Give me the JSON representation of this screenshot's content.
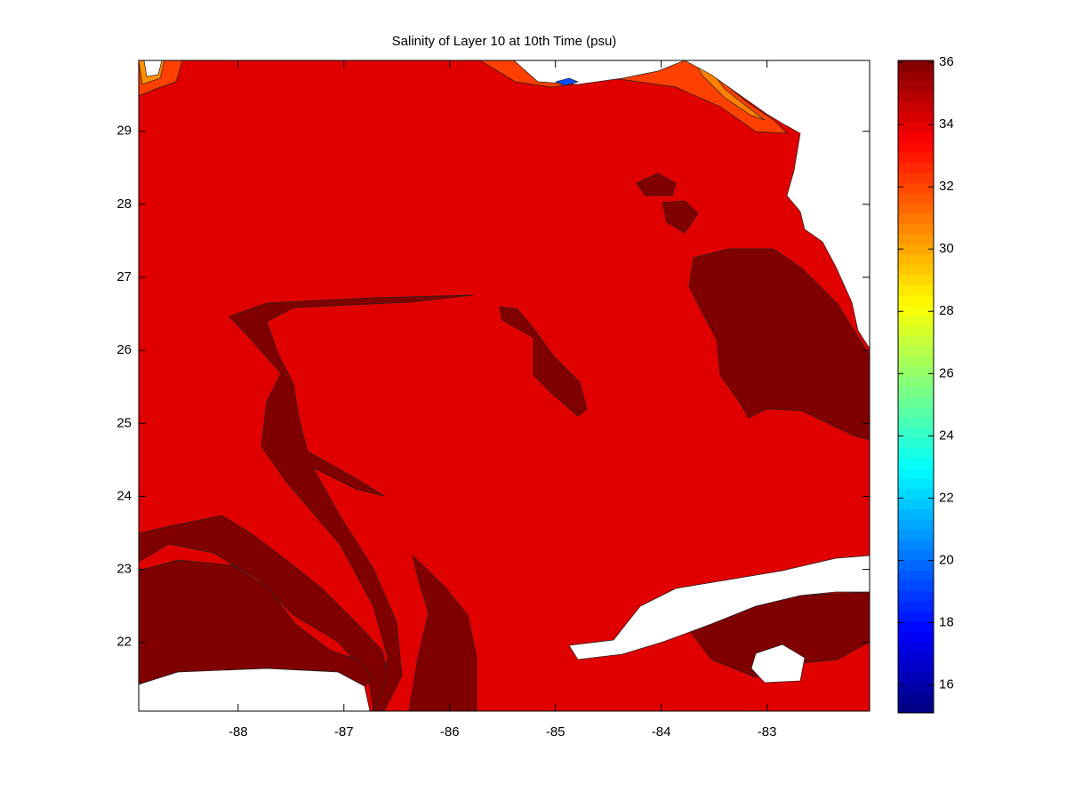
{
  "chart_data": {
    "type": "contour",
    "title": "Salinity of Layer 10 at 10th Time (psu)",
    "xlim": [
      -88.94,
      -82.03
    ],
    "ylim": [
      21.06,
      29.97
    ],
    "xticks": [
      -88,
      -87,
      -86,
      -85,
      -84,
      -83
    ],
    "yticks": [
      22,
      23,
      24,
      25,
      26,
      27,
      28,
      29
    ],
    "colorbar": {
      "clim": [
        15.1,
        36.06
      ],
      "ticks": [
        16,
        18,
        20,
        22,
        24,
        26,
        28,
        30,
        32,
        34,
        36
      ],
      "colormap": "jet",
      "levels": 64
    }
  }
}
